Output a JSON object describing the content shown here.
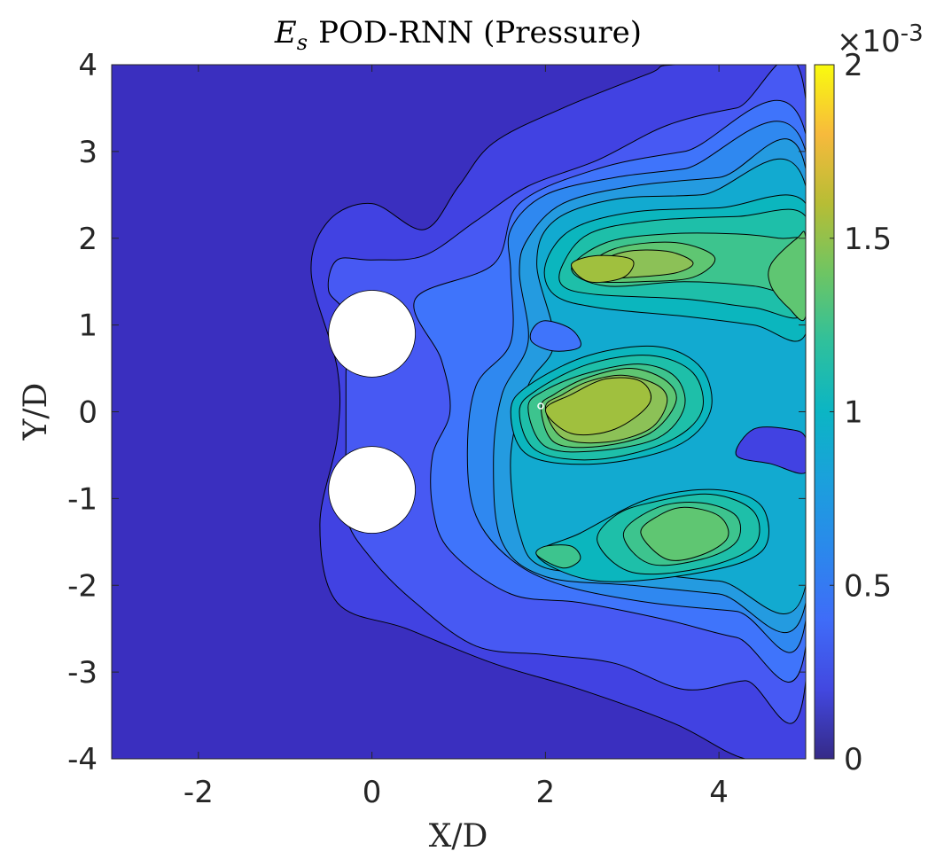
{
  "chart_data": {
    "type": "contour",
    "title": "POD-RNN (Pressure)",
    "title_symbol": "E",
    "title_symbol_sub": "s",
    "xlabel": "X/D",
    "ylabel": "Y/D",
    "xlim": [
      -3,
      5
    ],
    "ylim": [
      -4,
      4
    ],
    "xticks": [
      -2,
      0,
      2,
      4
    ],
    "yticks": [
      -4,
      -3,
      -2,
      -1,
      0,
      1,
      2,
      3,
      4
    ],
    "colorbar": {
      "range": [
        0,
        0.002
      ],
      "ticks": [
        0,
        0.5,
        1,
        1.5,
        2
      ],
      "tick_labels": [
        "0",
        "0.5",
        "1",
        "1.5",
        "2"
      ],
      "multiplier_base": "×10",
      "multiplier_exp": "-3",
      "colormap": "parula"
    },
    "cylinders": [
      {
        "x": 0,
        "y": 0.9,
        "d": 1
      },
      {
        "x": 0,
        "y": -0.9,
        "d": 1
      }
    ],
    "levels": [
      0,
      0.00015,
      0.0003,
      0.0004,
      0.0005,
      0.0006,
      0.0007,
      0.0008,
      0.0009,
      0.001,
      0.0011,
      0.0012,
      0.0013,
      0.0014
    ],
    "level_colors": [
      "#3a2fbf",
      "#4142e2",
      "#4759f3",
      "#3f74fb",
      "#2f88f0",
      "#249be0",
      "#12aad0",
      "#0bb6be",
      "#1ebfa9",
      "#3dc48e",
      "#5fc672",
      "#8cc157",
      "#a0c03e",
      "#b6bf33"
    ],
    "regions": [
      {
        "level": 1,
        "points": [
          [
            -0.7,
            1.6
          ],
          [
            -0.5,
            2.2
          ],
          [
            0,
            2.4
          ],
          [
            0.6,
            2.1
          ],
          [
            1,
            2.6
          ],
          [
            1.4,
            3.1
          ],
          [
            2.2,
            3.5
          ],
          [
            3.2,
            3.9
          ],
          [
            3.5,
            4
          ],
          [
            5,
            4
          ],
          [
            5,
            -4
          ],
          [
            4.3,
            -4
          ],
          [
            3.5,
            -3.6
          ],
          [
            2.4,
            -3.2
          ],
          [
            1.4,
            -2.9
          ],
          [
            0.4,
            -2.5
          ],
          [
            -0.4,
            -2.2
          ],
          [
            -0.6,
            -1.3
          ],
          [
            -0.4,
            -0.3
          ],
          [
            -0.4,
            0.5
          ]
        ]
      },
      {
        "level": 2,
        "points": [
          [
            -0.5,
            1.4
          ],
          [
            -0.4,
            1.75
          ],
          [
            0,
            1.75
          ],
          [
            0.6,
            1.8
          ],
          [
            1.2,
            2.2
          ],
          [
            1.8,
            2.6
          ],
          [
            2.6,
            2.9
          ],
          [
            3.4,
            3.3
          ],
          [
            4.2,
            3.5
          ],
          [
            5,
            3.6
          ],
          [
            5,
            -3.1
          ],
          [
            4.3,
            -3.1
          ],
          [
            3.6,
            -3.2
          ],
          [
            2.8,
            -2.9
          ],
          [
            2,
            -2.8
          ],
          [
            1.2,
            -2.7
          ],
          [
            0.5,
            -2.2
          ],
          [
            0,
            -1.7
          ],
          [
            -0.3,
            -1.2
          ],
          [
            -0.3,
            -0.4
          ],
          [
            -0.3,
            0.4
          ],
          [
            -0.3,
            1.1
          ]
        ]
      },
      {
        "level": 3,
        "points": [
          [
            0.5,
            1.3
          ],
          [
            1.4,
            1.7
          ],
          [
            1.7,
            2.4
          ],
          [
            2.6,
            2.8
          ],
          [
            3.6,
            3
          ],
          [
            5,
            3.2
          ],
          [
            5,
            -2.7
          ],
          [
            4.2,
            -2.6
          ],
          [
            3.4,
            -2.4
          ],
          [
            2.4,
            -2.2
          ],
          [
            1.6,
            -2.1
          ],
          [
            0.9,
            -1.6
          ],
          [
            0.7,
            -1.1
          ],
          [
            0.7,
            -0.5
          ],
          [
            0.9,
            0
          ],
          [
            0.8,
            0.6
          ]
        ]
      },
      {
        "level": 4,
        "points": [
          [
            1.6,
            1.6
          ],
          [
            1.6,
            2.1
          ],
          [
            2,
            2.5
          ],
          [
            2.8,
            2.7
          ],
          [
            3.6,
            2.8
          ],
          [
            5,
            3
          ],
          [
            5,
            -2.4
          ],
          [
            4.2,
            -2.3
          ],
          [
            3.2,
            -2.2
          ],
          [
            2.2,
            -2
          ],
          [
            1.6,
            -1.7
          ],
          [
            1.2,
            -1.2
          ],
          [
            1.1,
            -0.5
          ],
          [
            1.2,
            0.3
          ],
          [
            1.6,
            0.8
          ]
        ]
      },
      {
        "level": 5,
        "points": [
          [
            1.7,
            1.6
          ],
          [
            1.8,
            2
          ],
          [
            2.2,
            2.4
          ],
          [
            3,
            2.6
          ],
          [
            4,
            2.7
          ],
          [
            5,
            2.8
          ],
          [
            5,
            -2.2
          ],
          [
            4,
            -2.1
          ],
          [
            3,
            -2
          ],
          [
            2,
            -1.9
          ],
          [
            1.5,
            -1.5
          ],
          [
            1.4,
            -0.6
          ],
          [
            1.5,
            0.2
          ],
          [
            1.8,
            0.8
          ]
        ]
      },
      {
        "level": 6,
        "points": [
          [
            1.9,
            1.7
          ],
          [
            2.1,
            2.2
          ],
          [
            2.8,
            2.45
          ],
          [
            3.8,
            2.5
          ],
          [
            5,
            2.6
          ],
          [
            5,
            -2
          ],
          [
            4,
            -1.95
          ],
          [
            3,
            -1.85
          ],
          [
            2,
            -1.8
          ],
          [
            1.7,
            -1.4
          ],
          [
            1.6,
            -0.5
          ],
          [
            1.8,
            0.3
          ],
          [
            2.1,
            0.8
          ]
        ]
      },
      {
        "level": 7,
        "points": [
          [
            2,
            1.7
          ],
          [
            2.3,
            2.1
          ],
          [
            3,
            2.3
          ],
          [
            4,
            2.35
          ],
          [
            5,
            2.4
          ],
          [
            5,
            0.9
          ],
          [
            4.4,
            1
          ],
          [
            3.6,
            1.1
          ],
          [
            2.6,
            1.2
          ],
          [
            2.1,
            1.35
          ]
        ]
      },
      {
        "level": 7,
        "points": [
          [
            1.6,
            0
          ],
          [
            1.8,
            -0.5
          ],
          [
            2.6,
            -0.6
          ],
          [
            3.5,
            -0.4
          ],
          [
            3.9,
            0
          ],
          [
            3.8,
            0.5
          ],
          [
            3.3,
            0.75
          ],
          [
            2.5,
            0.65
          ],
          [
            1.8,
            0.3
          ]
        ]
      },
      {
        "level": 7,
        "points": [
          [
            1.9,
            -1.65
          ],
          [
            2.6,
            -1.95
          ],
          [
            3.8,
            -1.85
          ],
          [
            4.5,
            -1.6
          ],
          [
            4.5,
            -1.1
          ],
          [
            4,
            -0.9
          ],
          [
            3.2,
            -1
          ],
          [
            2.4,
            -1.4
          ]
        ]
      },
      {
        "level": 8,
        "points": [
          [
            2.2,
            1.7
          ],
          [
            2.5,
            2.05
          ],
          [
            3.2,
            2.2
          ],
          [
            4.2,
            2.25
          ],
          [
            5,
            2.25
          ],
          [
            5,
            1.15
          ],
          [
            4.4,
            1.2
          ],
          [
            3.6,
            1.3
          ],
          [
            2.6,
            1.35
          ],
          [
            2.2,
            1.45
          ]
        ]
      },
      {
        "level": 8,
        "points": [
          [
            1.7,
            0
          ],
          [
            1.9,
            -0.45
          ],
          [
            2.6,
            -0.55
          ],
          [
            3.4,
            -0.35
          ],
          [
            3.8,
            0
          ],
          [
            3.7,
            0.45
          ],
          [
            3.2,
            0.65
          ],
          [
            2.5,
            0.55
          ],
          [
            1.9,
            0.25
          ]
        ]
      },
      {
        "level": 8,
        "points": [
          [
            2.6,
            -1.5
          ],
          [
            3,
            -1.85
          ],
          [
            3.8,
            -1.8
          ],
          [
            4.4,
            -1.55
          ],
          [
            4.4,
            -1.15
          ],
          [
            3.9,
            -0.95
          ],
          [
            3.2,
            -1.05
          ],
          [
            2.8,
            -1.2
          ]
        ]
      },
      {
        "level": 9,
        "points": [
          [
            2.3,
            1.65
          ],
          [
            2.7,
            1.95
          ],
          [
            3.4,
            2.05
          ],
          [
            4.2,
            2.05
          ],
          [
            4.7,
            2
          ],
          [
            5,
            1.95
          ],
          [
            5,
            1.35
          ],
          [
            4.4,
            1.45
          ],
          [
            3.6,
            1.5
          ],
          [
            2.7,
            1.45
          ]
        ]
      },
      {
        "level": 9,
        "points": [
          [
            1.8,
            0.05
          ],
          [
            2,
            -0.4
          ],
          [
            2.6,
            -0.45
          ],
          [
            3.3,
            -0.3
          ],
          [
            3.6,
            0.05
          ],
          [
            3.5,
            0.4
          ],
          [
            3.1,
            0.55
          ],
          [
            2.5,
            0.45
          ],
          [
            2,
            0.25
          ]
        ]
      },
      {
        "level": 9,
        "points": [
          [
            2.9,
            -1.4
          ],
          [
            3.2,
            -1.75
          ],
          [
            3.8,
            -1.7
          ],
          [
            4.2,
            -1.5
          ],
          [
            4.2,
            -1.2
          ],
          [
            3.8,
            -1.05
          ],
          [
            3.3,
            -1.1
          ]
        ]
      },
      {
        "level": 9,
        "points": [
          [
            1.9,
            -1.65
          ],
          [
            2.2,
            -1.8
          ],
          [
            2.4,
            -1.7
          ],
          [
            2.3,
            -1.55
          ],
          [
            2,
            -1.55
          ]
        ]
      },
      {
        "level": 10,
        "points": [
          [
            2.4,
            1.6
          ],
          [
            2.8,
            1.88
          ],
          [
            3.5,
            1.95
          ],
          [
            3.95,
            1.78
          ],
          [
            3.7,
            1.55
          ],
          [
            3.1,
            1.5
          ],
          [
            2.6,
            1.5
          ]
        ]
      },
      {
        "level": 10,
        "points": [
          [
            4.6,
            1.7
          ],
          [
            4.9,
            2
          ],
          [
            5,
            2
          ],
          [
            5,
            1.1
          ],
          [
            4.8,
            1.2
          ],
          [
            4.6,
            1.45
          ]
        ]
      },
      {
        "level": 10,
        "points": [
          [
            1.95,
            0.05
          ],
          [
            2.1,
            -0.35
          ],
          [
            2.6,
            -0.4
          ],
          [
            3.2,
            -0.25
          ],
          [
            3.5,
            0.1
          ],
          [
            3.4,
            0.35
          ],
          [
            3,
            0.5
          ],
          [
            2.5,
            0.4
          ],
          [
            2.1,
            0.2
          ]
        ]
      },
      {
        "level": 10,
        "points": [
          [
            3.1,
            -1.4
          ],
          [
            3.4,
            -1.7
          ],
          [
            3.8,
            -1.65
          ],
          [
            4.1,
            -1.45
          ],
          [
            4,
            -1.2
          ],
          [
            3.6,
            -1.1
          ],
          [
            3.3,
            -1.2
          ]
        ]
      },
      {
        "level": 11,
        "points": [
          [
            2.5,
            1.65
          ],
          [
            2.9,
            1.84
          ],
          [
            3.4,
            1.85
          ],
          [
            3.7,
            1.72
          ],
          [
            3.5,
            1.6
          ],
          [
            3,
            1.55
          ],
          [
            2.7,
            1.55
          ]
        ]
      },
      {
        "level": 11,
        "points": [
          [
            2,
            0.05
          ],
          [
            2.2,
            -0.3
          ],
          [
            2.7,
            -0.35
          ],
          [
            3.2,
            -0.2
          ],
          [
            3.4,
            0.1
          ],
          [
            3.3,
            0.3
          ],
          [
            2.9,
            0.42
          ],
          [
            2.5,
            0.35
          ],
          [
            2.2,
            0.2
          ]
        ]
      },
      {
        "level": 12,
        "points": [
          [
            2.3,
            1.7
          ],
          [
            2.6,
            1.8
          ],
          [
            3,
            1.75
          ],
          [
            2.9,
            1.55
          ],
          [
            2.5,
            1.5
          ]
        ]
      },
      {
        "level": 12,
        "points": [
          [
            2,
            0.02
          ],
          [
            2.3,
            -0.25
          ],
          [
            2.8,
            -0.2
          ],
          [
            3.2,
            0.1
          ],
          [
            3.1,
            0.35
          ],
          [
            2.7,
            0.38
          ],
          [
            2.3,
            0.2
          ]
        ]
      },
      {
        "level": 1,
        "points": [
          [
            4.2,
            -0.5
          ],
          [
            4.4,
            -0.2
          ],
          [
            4.8,
            -0.2
          ],
          [
            5,
            -0.3
          ],
          [
            5,
            -0.7
          ],
          [
            4.6,
            -0.6
          ]
        ]
      },
      {
        "level": 3,
        "points": [
          [
            1.85,
            0.95
          ],
          [
            2,
            1.05
          ],
          [
            2.3,
            0.95
          ],
          [
            2.4,
            0.75
          ],
          [
            2.1,
            0.7
          ],
          [
            1.85,
            0.8
          ]
        ]
      }
    ]
  }
}
